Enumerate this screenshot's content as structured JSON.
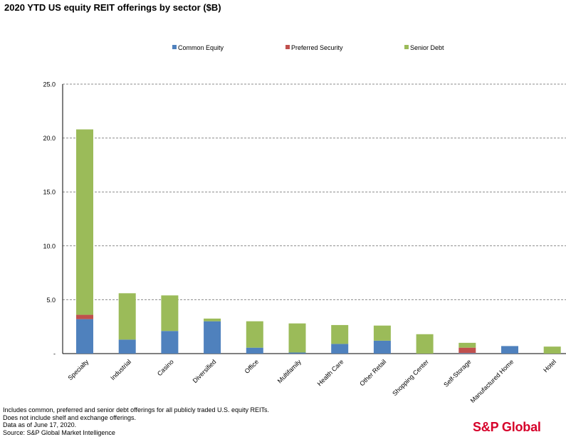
{
  "chart_data": {
    "type": "bar",
    "stacked": true,
    "title": "2020 YTD US equity REIT offerings by sector ($B)",
    "xlabel": "",
    "ylabel": "",
    "ylim": [
      0,
      25
    ],
    "yticks": [
      0,
      5,
      10,
      15,
      20,
      25
    ],
    "ytick_labels": [
      "-",
      "5.0",
      "10.0",
      "15.0",
      "20.0",
      "25.0"
    ],
    "grid": true,
    "legend_position": "top",
    "categories": [
      "Specialty",
      "Industrial",
      "Casino",
      "Diversified",
      "Office",
      "Multifamily",
      "Health Care",
      "Other Retail",
      "Shopping Center",
      "Self-Storage",
      "Manufactured Home",
      "Hotel"
    ],
    "series": [
      {
        "name": "Common Equity",
        "color": "#4f81bd",
        "values": [
          3.2,
          1.3,
          2.1,
          3.0,
          0.55,
          0.1,
          0.9,
          1.2,
          0.0,
          0.05,
          0.7,
          0.0
        ]
      },
      {
        "name": "Preferred Security",
        "color": "#c0504d",
        "values": [
          0.4,
          0.0,
          0.0,
          0.0,
          0.0,
          0.0,
          0.0,
          0.0,
          0.0,
          0.5,
          0.0,
          0.0
        ]
      },
      {
        "name": "Senior Debt",
        "color": "#9bbb59",
        "values": [
          17.2,
          4.3,
          3.3,
          0.25,
          2.45,
          2.7,
          1.75,
          1.4,
          1.8,
          0.45,
          0.0,
          0.65
        ]
      }
    ]
  },
  "footer": {
    "lines": [
      "Includes common, preferred and senior debt offerings for all publicly traded U.S. equity REITs.",
      "Does not include shelf and exchange offerings.",
      "Data as of June 17, 2020.",
      "Source: S&P Global Market Intelligence"
    ]
  },
  "logo": {
    "text": "S&P Global",
    "color": "#d6002a"
  }
}
